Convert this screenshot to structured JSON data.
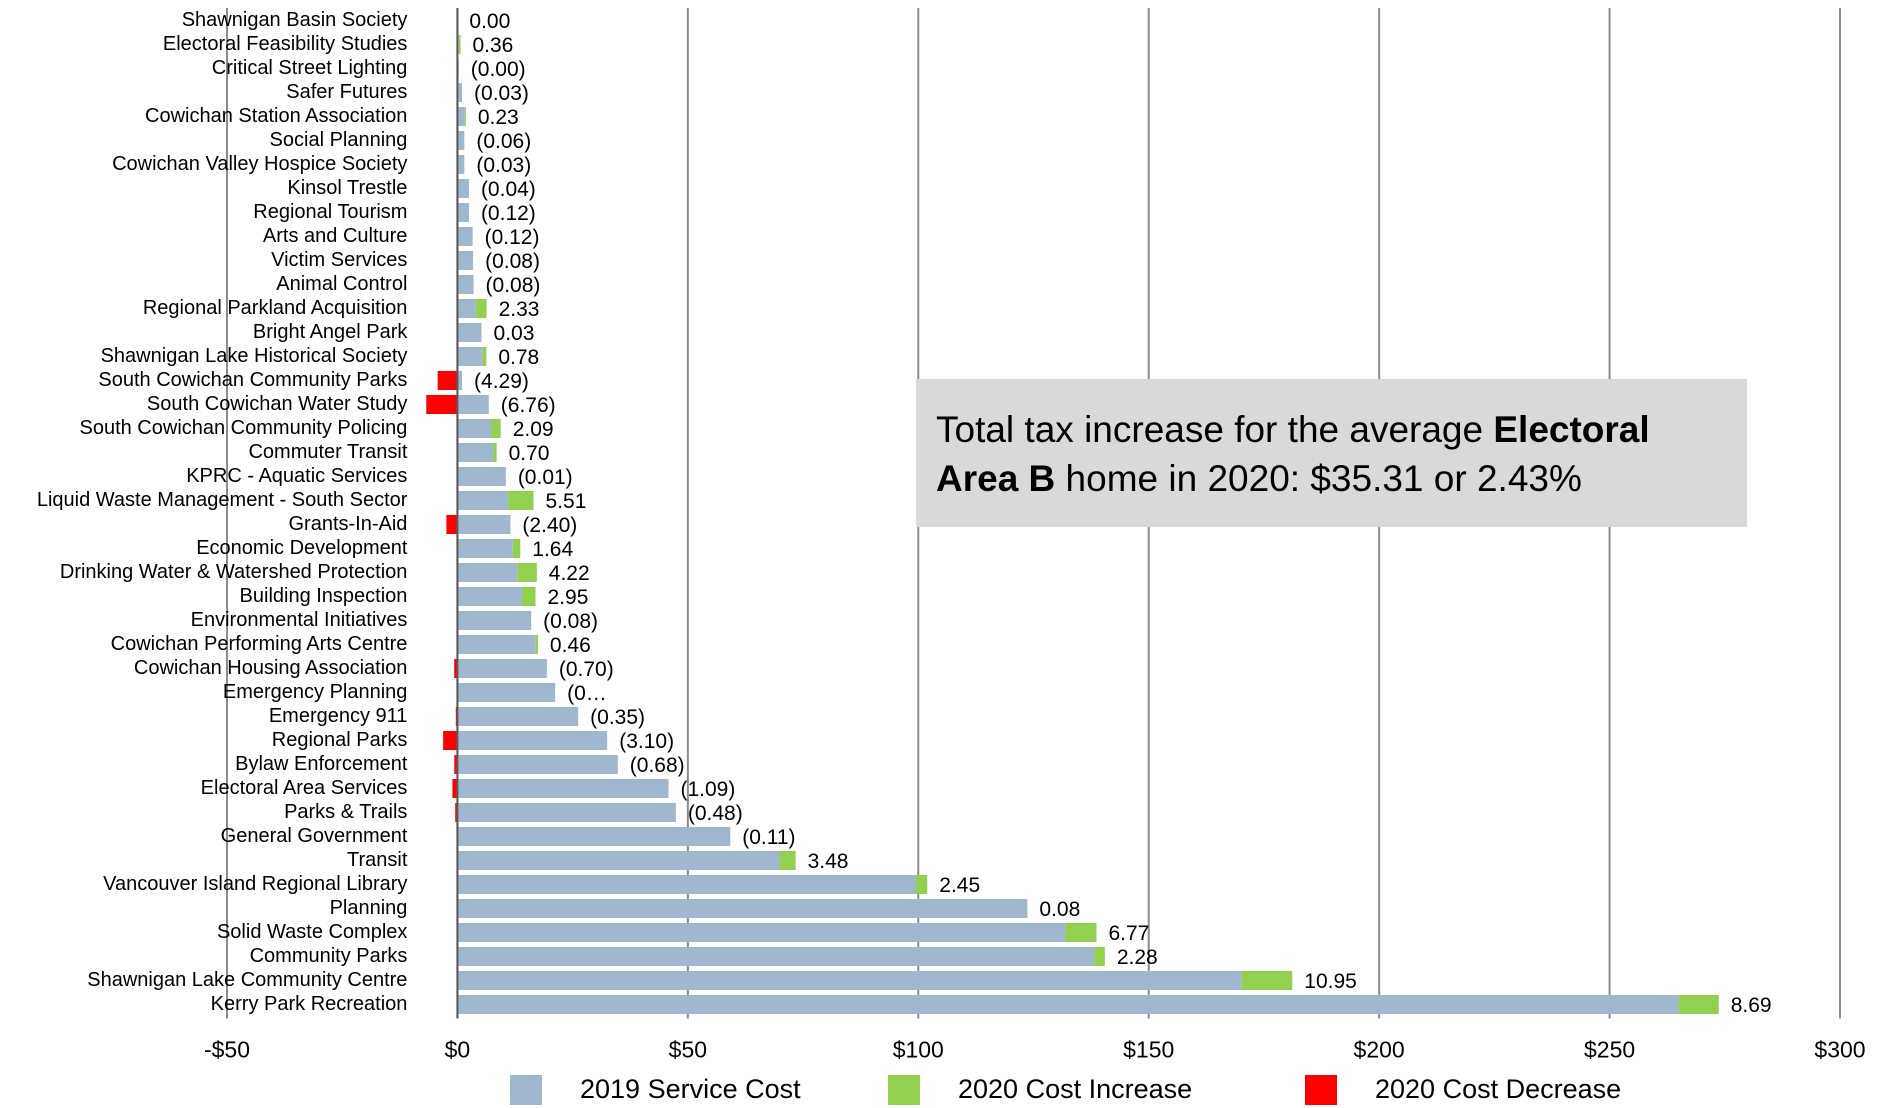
{
  "chart_data": {
    "type": "bar",
    "orientation": "horizontal",
    "stacked": true,
    "categories": [
      "Shawnigan Basin Society",
      "Electoral Feasibility Studies",
      "Critical Street Lighting",
      "Safer Futures",
      "Cowichan Station Association",
      "Social Planning",
      "Cowichan Valley Hospice Society",
      "Kinsol Trestle",
      "Regional Tourism",
      "Arts and Culture",
      "Victim Services",
      "Animal Control",
      "Regional Parkland Acquisition",
      "Bright Angel Park",
      "Shawnigan Lake Historical Society",
      "South Cowichan Community Parks",
      "South Cowichan Water Study",
      "South Cowichan Community Policing",
      "Commuter Transit",
      "KPRC - Aquatic Services",
      "Liquid Waste Management - South Sector",
      "Grants-In-Aid",
      "Economic Development",
      "Drinking Water & Watershed Protection",
      "Building Inspection",
      "Environmental Initiatives",
      "Cowichan Performing Arts Centre",
      "Cowichan Housing Association",
      "Emergency Planning",
      "Emergency 911",
      "Regional Parks",
      "Bylaw Enforcement",
      "Electoral Area Services",
      "Parks & Trails",
      "General Government",
      "Transit",
      "Vancouver Island Regional Library",
      "Planning",
      "Solid Waste Complex",
      "Community Parks",
      "Shawnigan Lake Community Centre",
      "Kerry Park Recreation"
    ],
    "series": [
      {
        "name": "2019 Service Cost",
        "color": "#9fb7cf",
        "values": [
          0,
          0.3,
          0.3,
          1,
          1.6,
          1.5,
          1.5,
          2.5,
          2.5,
          3.3,
          3.4,
          3.5,
          4,
          5.2,
          5.5,
          1,
          6.8,
          7.3,
          7.8,
          10.5,
          11,
          11.5,
          12,
          13,
          14,
          16,
          17,
          19.4,
          21.2,
          26.2,
          32.5,
          34.8,
          45.8,
          47.4,
          59.2,
          69.9,
          99.5,
          123.6,
          131.9,
          138.2,
          170.2,
          265
        ]
      },
      {
        "name": "2020 Cost Increase",
        "color": "#92d050",
        "values": [
          0,
          0.36,
          null,
          null,
          0.23,
          null,
          null,
          null,
          null,
          null,
          null,
          null,
          2.33,
          0.03,
          0.78,
          null,
          null,
          2.09,
          0.7,
          null,
          5.51,
          null,
          1.64,
          4.22,
          2.95,
          null,
          0.46,
          null,
          null,
          null,
          null,
          null,
          null,
          null,
          null,
          3.48,
          2.45,
          0.08,
          6.77,
          2.28,
          10.95,
          8.69
        ],
        "value_labels": [
          "0.00",
          "0.36",
          null,
          null,
          "0.23",
          null,
          null,
          null,
          null,
          null,
          null,
          null,
          "2.33",
          "0.03",
          "0.78",
          null,
          null,
          "2.09",
          "0.70",
          null,
          "5.51",
          null,
          "1.64",
          "4.22",
          "2.95",
          null,
          "0.46",
          null,
          null,
          null,
          null,
          null,
          null,
          null,
          null,
          "3.48",
          "2.45",
          "0.08",
          "6.77",
          "2.28",
          "10.95",
          "8.69"
        ]
      },
      {
        "name": "2020 Cost Decrease",
        "color": "#ff0000",
        "values": [
          null,
          null,
          0,
          -0.03,
          null,
          -0.06,
          -0.03,
          -0.04,
          -0.12,
          -0.12,
          -0.08,
          -0.08,
          null,
          null,
          null,
          -4.29,
          -6.76,
          null,
          null,
          -0.01,
          null,
          -2.4,
          null,
          null,
          null,
          -0.08,
          null,
          -0.7,
          -0.2,
          -0.35,
          -3.1,
          -0.68,
          -1.09,
          -0.48,
          -0.11,
          null,
          null,
          null,
          null,
          null,
          null,
          null
        ],
        "value_labels": [
          null,
          null,
          "(0.00)",
          "(0.03)",
          null,
          "(0.06)",
          "(0.03)",
          "(0.04)",
          "(0.12)",
          "(0.12)",
          "(0.08)",
          "(0.08)",
          null,
          null,
          null,
          "(4.29)",
          "(6.76)",
          null,
          null,
          "(0.01)",
          null,
          "(2.40)",
          null,
          null,
          null,
          "(0.08)",
          null,
          "(0.70)",
          "(0…",
          "(0.35)",
          "(3.10)",
          "(0.68)",
          "(1.09)",
          "(0.48)",
          "(0.11)",
          null,
          null,
          null,
          null,
          null,
          null,
          null
        ]
      }
    ],
    "xlim": [
      -50,
      300
    ],
    "xticks": [
      {
        "value": -50,
        "label": "-$50"
      },
      {
        "value": 0,
        "label": "$0"
      },
      {
        "value": 50,
        "label": "$50"
      },
      {
        "value": 100,
        "label": "$100"
      },
      {
        "value": 150,
        "label": "$150"
      },
      {
        "value": 200,
        "label": "$200"
      },
      {
        "value": 250,
        "label": "$250"
      },
      {
        "value": 300,
        "label": "$300"
      }
    ],
    "grid": true,
    "legend": "bottom",
    "annotation": [
      {
        "text": "Total tax increase for the average ",
        "bold": false
      },
      {
        "text": "Electoral Area B",
        "bold": true
      },
      {
        "text": " home in 2020: $35.31 or 2.43%",
        "bold": false
      }
    ]
  }
}
